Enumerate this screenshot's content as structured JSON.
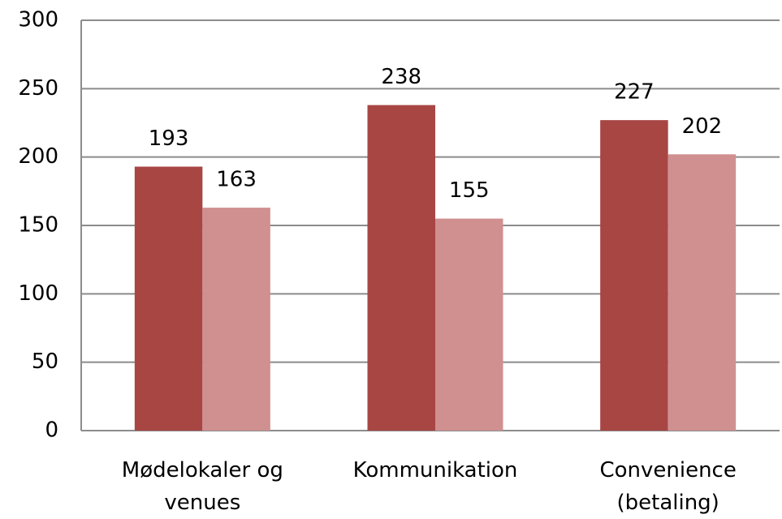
{
  "chart_data": {
    "type": "bar",
    "categories": [
      "Mødelokaler og venues",
      "Kommunikation",
      "Convenience (betaling)"
    ],
    "series": [
      {
        "color": "#a84644",
        "values": [
          193,
          238,
          227
        ]
      },
      {
        "color": "#d09090",
        "values": [
          163,
          155,
          202
        ]
      }
    ],
    "ylim": [
      0,
      300
    ],
    "yticks": [
      0,
      50,
      100,
      150,
      200,
      250,
      300
    ],
    "grid": true
  }
}
